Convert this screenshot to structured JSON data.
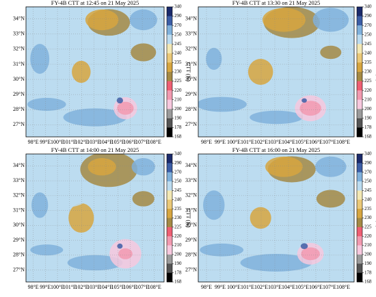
{
  "panels": [
    {
      "title": "FY-4B CTT at 12:45 on 21 May 2025"
    },
    {
      "title": "FY-4B CTT at 13:30 on 21 May 2025"
    },
    {
      "title": "FY-4B CTT at 14:00 on 21 May 2025"
    },
    {
      "title": "FY-4B CTT at 16:00 on 21 May 2025"
    }
  ],
  "map": {
    "xlim": [
      97.4,
      108.8
    ],
    "ylim": [
      26.2,
      34.8
    ],
    "xticks": [
      {
        "value": 98,
        "label": "98°E"
      },
      {
        "value": 99,
        "label": "99°E"
      },
      {
        "value": 100,
        "label": "100°E"
      },
      {
        "value": 101,
        "label": "101°E"
      },
      {
        "value": 102,
        "label": "102°E"
      },
      {
        "value": 103,
        "label": "103°E"
      },
      {
        "value": 104,
        "label": "104°E"
      },
      {
        "value": 105,
        "label": "105°E"
      },
      {
        "value": 106,
        "label": "106°E"
      },
      {
        "value": 107,
        "label": "107°E"
      },
      {
        "value": 108,
        "label": "108°E"
      }
    ],
    "yticks": [
      {
        "value": 27,
        "label": "27°N"
      },
      {
        "value": 28,
        "label": "28°N"
      },
      {
        "value": 29,
        "label": "29°N"
      },
      {
        "value": 30,
        "label": "30°N"
      },
      {
        "value": 31,
        "label": "31°N"
      },
      {
        "value": 32,
        "label": "32°N"
      },
      {
        "value": 33,
        "label": "33°N"
      },
      {
        "value": 34,
        "label": "34°N"
      }
    ]
  },
  "colorbar": {
    "label": "CTT (K)",
    "ticks": [
      340,
      290,
      270,
      250,
      245,
      240,
      235,
      230,
      225,
      220,
      210,
      200,
      190,
      178,
      168
    ],
    "colors": [
      "#1b2a6b",
      "#3c5ea6",
      "#80b1dc",
      "#bcdcf0",
      "#f3e8b4",
      "#ebc978",
      "#d7a640",
      "#a58a44",
      "#ef5f73",
      "#f29ab0",
      "#f7c8de",
      "#9b9b9b",
      "#555555",
      "#000000"
    ]
  }
}
